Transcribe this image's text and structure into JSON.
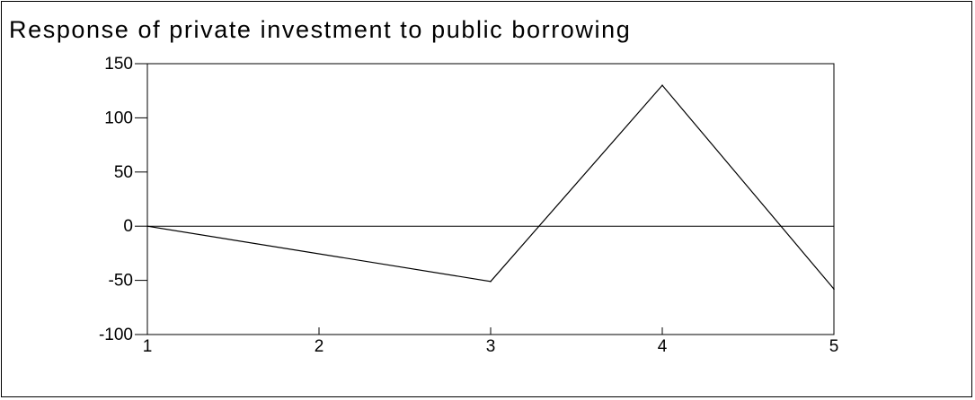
{
  "chart_data": {
    "type": "line",
    "title": "Response of private investment to public borrowing",
    "xlabel": "",
    "ylabel": "",
    "x": [
      1,
      2,
      3,
      4,
      5
    ],
    "x_tick_labels": [
      "1",
      "2",
      "3",
      "4",
      "5"
    ],
    "ylim": [
      -100,
      150
    ],
    "y_ticks": [
      150,
      100,
      50,
      0,
      -50,
      -100
    ],
    "y_tick_labels": [
      "150",
      "100",
      "50",
      "0",
      "-50",
      "-100"
    ],
    "zero_line": true,
    "grid": false,
    "series": [
      {
        "x": [
          1,
          3,
          4,
          5
        ],
        "values": [
          0,
          -51,
          130,
          -58
        ],
        "color": "#000000"
      }
    ]
  }
}
